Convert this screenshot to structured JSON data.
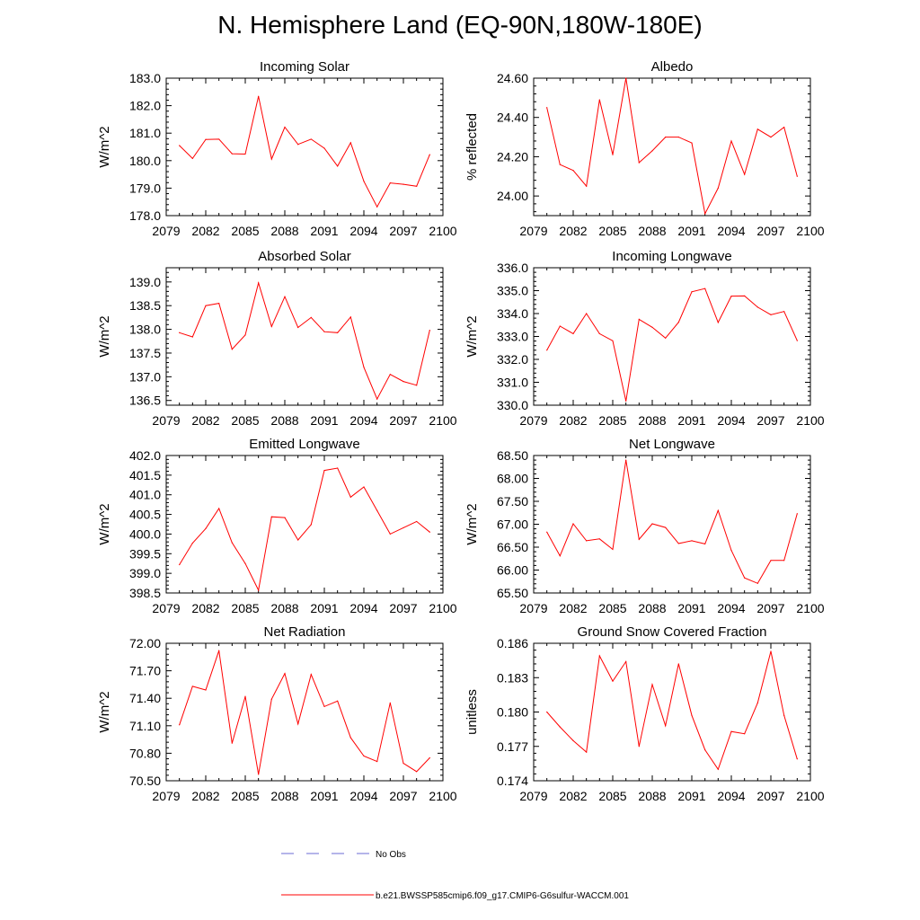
{
  "title": "N. Hemisphere Land (EQ-90N,180W-180E)",
  "colors": {
    "series": "#ff0000",
    "axes": "#000000",
    "no_obs": "#6b6bd6"
  },
  "legend": {
    "no_obs_label": "No Obs",
    "model_label": "b.e21.BWSSP585cmip6.f09_g17.CMIP6-G6sulfur-WACCM.001"
  },
  "chart_data": [
    {
      "type": "line",
      "title": "Incoming Solar",
      "ylabel": "W/m^2",
      "xlim": [
        2079,
        2100
      ],
      "ylim": [
        178.0,
        183.0
      ],
      "xticks": [
        "2079",
        "2082",
        "2085",
        "2088",
        "2091",
        "2094",
        "2097",
        "2100"
      ],
      "yticks": [
        "178.0",
        "179.0",
        "180.0",
        "181.0",
        "182.0",
        "183.0"
      ],
      "x": [
        2080,
        2081,
        2082,
        2083,
        2084,
        2085,
        2086,
        2087,
        2088,
        2089,
        2090,
        2091,
        2092,
        2093,
        2094,
        2095,
        2096,
        2097,
        2098,
        2099
      ],
      "series": [
        {
          "name": "b.e21.BWSSP585cmip6.f09_g17.CMIP6-G6sulfur-WACCM.001",
          "values": [
            180.55,
            180.08,
            180.77,
            180.78,
            180.25,
            180.24,
            182.34,
            180.06,
            181.22,
            180.59,
            180.78,
            180.45,
            179.8,
            180.65,
            179.25,
            178.32,
            179.19,
            179.14,
            179.07,
            180.22
          ]
        }
      ]
    },
    {
      "type": "line",
      "title": "Albedo",
      "ylabel": "% reflected",
      "xlim": [
        2079,
        2100
      ],
      "ylim": [
        23.9,
        24.6
      ],
      "xticks": [
        "2079",
        "2082",
        "2085",
        "2088",
        "2091",
        "2094",
        "2097",
        "2100"
      ],
      "yticks": [
        "24.00",
        "24.20",
        "24.40",
        "24.60"
      ],
      "x": [
        2080,
        2081,
        2082,
        2083,
        2084,
        2085,
        2086,
        2087,
        2088,
        2089,
        2090,
        2091,
        2092,
        2093,
        2094,
        2095,
        2096,
        2097,
        2098,
        2099
      ],
      "series": [
        {
          "name": "b.e21.BWSSP585cmip6.f09_g17.CMIP6-G6sulfur-WACCM.001",
          "values": [
            24.45,
            24.16,
            24.13,
            24.05,
            24.49,
            24.21,
            24.6,
            24.17,
            24.23,
            24.3,
            24.3,
            24.27,
            23.91,
            24.04,
            24.28,
            24.11,
            24.34,
            24.3,
            24.35,
            24.1
          ]
        }
      ]
    },
    {
      "type": "line",
      "title": "Absorbed Solar",
      "ylabel": "W/m^2",
      "xlim": [
        2079,
        2100
      ],
      "ylim": [
        136.4,
        139.3
      ],
      "xticks": [
        "2079",
        "2082",
        "2085",
        "2088",
        "2091",
        "2094",
        "2097",
        "2100"
      ],
      "yticks": [
        "136.5",
        "137.0",
        "137.5",
        "138.0",
        "138.5",
        "139.0"
      ],
      "x": [
        2080,
        2081,
        2082,
        2083,
        2084,
        2085,
        2086,
        2087,
        2088,
        2089,
        2090,
        2091,
        2092,
        2093,
        2094,
        2095,
        2096,
        2097,
        2098,
        2099
      ],
      "series": [
        {
          "name": "b.e21.BWSSP585cmip6.f09_g17.CMIP6-G6sulfur-WACCM.001",
          "values": [
            137.93,
            137.84,
            138.5,
            138.55,
            137.58,
            137.88,
            138.98,
            138.06,
            138.69,
            138.04,
            138.25,
            137.95,
            137.93,
            138.26,
            137.2,
            136.53,
            137.05,
            136.9,
            136.82,
            137.98
          ]
        }
      ]
    },
    {
      "type": "line",
      "title": "Incoming Longwave",
      "ylabel": "W/m^2",
      "xlim": [
        2079,
        2100
      ],
      "ylim": [
        330.0,
        336.0
      ],
      "xticks": [
        "2079",
        "2082",
        "2085",
        "2088",
        "2091",
        "2094",
        "2097",
        "2100"
      ],
      "yticks": [
        "330.0",
        "331.0",
        "332.0",
        "333.0",
        "334.0",
        "335.0",
        "336.0"
      ],
      "x": [
        2080,
        2081,
        2082,
        2083,
        2084,
        2085,
        2086,
        2087,
        2088,
        2089,
        2090,
        2091,
        2092,
        2093,
        2094,
        2095,
        2096,
        2097,
        2098,
        2099
      ],
      "series": [
        {
          "name": "b.e21.BWSSP585cmip6.f09_g17.CMIP6-G6sulfur-WACCM.001",
          "values": [
            332.4,
            333.45,
            333.12,
            334.0,
            333.12,
            332.81,
            330.18,
            333.75,
            333.4,
            332.93,
            333.62,
            334.95,
            335.09,
            333.61,
            334.76,
            334.77,
            334.28,
            333.95,
            334.09,
            332.82
          ]
        }
      ]
    },
    {
      "type": "line",
      "title": "Emitted Longwave",
      "ylabel": "W/m^2",
      "xlim": [
        2079,
        2100
      ],
      "ylim": [
        398.5,
        402.0
      ],
      "xticks": [
        "2079",
        "2082",
        "2085",
        "2088",
        "2091",
        "2094",
        "2097",
        "2100"
      ],
      "yticks": [
        "398.5",
        "399.0",
        "399.5",
        "400.0",
        "400.5",
        "401.0",
        "401.5",
        "402.0"
      ],
      "x": [
        2080,
        2081,
        2082,
        2083,
        2084,
        2085,
        2086,
        2087,
        2088,
        2089,
        2090,
        2091,
        2092,
        2093,
        2094,
        2095,
        2096,
        2097,
        2098,
        2099
      ],
      "series": [
        {
          "name": "b.e21.BWSSP585cmip6.f09_g17.CMIP6-G6sulfur-WACCM.001",
          "values": [
            399.22,
            399.77,
            400.14,
            400.65,
            399.78,
            399.25,
            398.57,
            400.44,
            400.42,
            399.85,
            400.24,
            401.62,
            401.68,
            400.94,
            401.2,
            400.6,
            400.0,
            400.16,
            400.32,
            400.05
          ]
        }
      ]
    },
    {
      "type": "line",
      "title": "Net Longwave",
      "ylabel": "W/m^2",
      "xlim": [
        2079,
        2100
      ],
      "ylim": [
        65.5,
        68.5
      ],
      "xticks": [
        "2079",
        "2082",
        "2085",
        "2088",
        "2091",
        "2094",
        "2097",
        "2100"
      ],
      "yticks": [
        "65.50",
        "66.00",
        "66.50",
        "67.00",
        "67.50",
        "68.00",
        "68.50"
      ],
      "x": [
        2080,
        2081,
        2082,
        2083,
        2084,
        2085,
        2086,
        2087,
        2088,
        2089,
        2090,
        2091,
        2092,
        2093,
        2094,
        2095,
        2096,
        2097,
        2098,
        2099
      ],
      "series": [
        {
          "name": "b.e21.BWSSP585cmip6.f09_g17.CMIP6-G6sulfur-WACCM.001",
          "values": [
            66.83,
            66.31,
            67.01,
            66.64,
            66.68,
            66.45,
            68.4,
            66.67,
            67.01,
            66.93,
            66.58,
            66.64,
            66.57,
            67.3,
            66.43,
            65.83,
            65.71,
            66.21,
            66.21,
            67.23
          ]
        }
      ]
    },
    {
      "type": "line",
      "title": "Net Radiation",
      "ylabel": "W/m^2",
      "xlim": [
        2079,
        2100
      ],
      "ylim": [
        70.5,
        72.0
      ],
      "xticks": [
        "2079",
        "2082",
        "2085",
        "2088",
        "2091",
        "2094",
        "2097",
        "2100"
      ],
      "yticks": [
        "70.50",
        "70.80",
        "71.10",
        "71.40",
        "71.70",
        "72.00"
      ],
      "x": [
        2080,
        2081,
        2082,
        2083,
        2084,
        2085,
        2086,
        2087,
        2088,
        2089,
        2090,
        2091,
        2092,
        2093,
        2094,
        2095,
        2096,
        2097,
        2098,
        2099
      ],
      "series": [
        {
          "name": "b.e21.BWSSP585cmip6.f09_g17.CMIP6-G6sulfur-WACCM.001",
          "values": [
            71.11,
            71.53,
            71.49,
            71.92,
            70.91,
            71.42,
            70.57,
            71.39,
            71.67,
            71.12,
            71.66,
            71.31,
            71.37,
            70.97,
            70.77,
            70.71,
            71.35,
            70.69,
            70.6,
            70.75
          ]
        }
      ]
    },
    {
      "type": "line",
      "title": "Ground Snow Covered Fraction",
      "ylabel": "unitless",
      "xlim": [
        2079,
        2100
      ],
      "ylim": [
        0.174,
        0.186
      ],
      "xticks": [
        "2079",
        "2082",
        "2085",
        "2088",
        "2091",
        "2094",
        "2097",
        "2100"
      ],
      "yticks": [
        "0.174",
        "0.177",
        "0.180",
        "0.183",
        "0.186"
      ],
      "x": [
        2080,
        2081,
        2082,
        2083,
        2084,
        2085,
        2086,
        2087,
        2088,
        2089,
        2090,
        2091,
        2092,
        2093,
        2094,
        2095,
        2096,
        2097,
        2098,
        2099
      ],
      "series": [
        {
          "name": "b.e21.BWSSP585cmip6.f09_g17.CMIP6-G6sulfur-WACCM.001",
          "values": [
            0.18,
            0.1787,
            0.1775,
            0.1765,
            0.1849,
            0.1827,
            0.1844,
            0.177,
            0.1824,
            0.1788,
            0.1842,
            0.1797,
            0.1767,
            0.175,
            0.1783,
            0.1781,
            0.1808,
            0.1853,
            0.1797,
            0.1759
          ]
        }
      ]
    }
  ]
}
